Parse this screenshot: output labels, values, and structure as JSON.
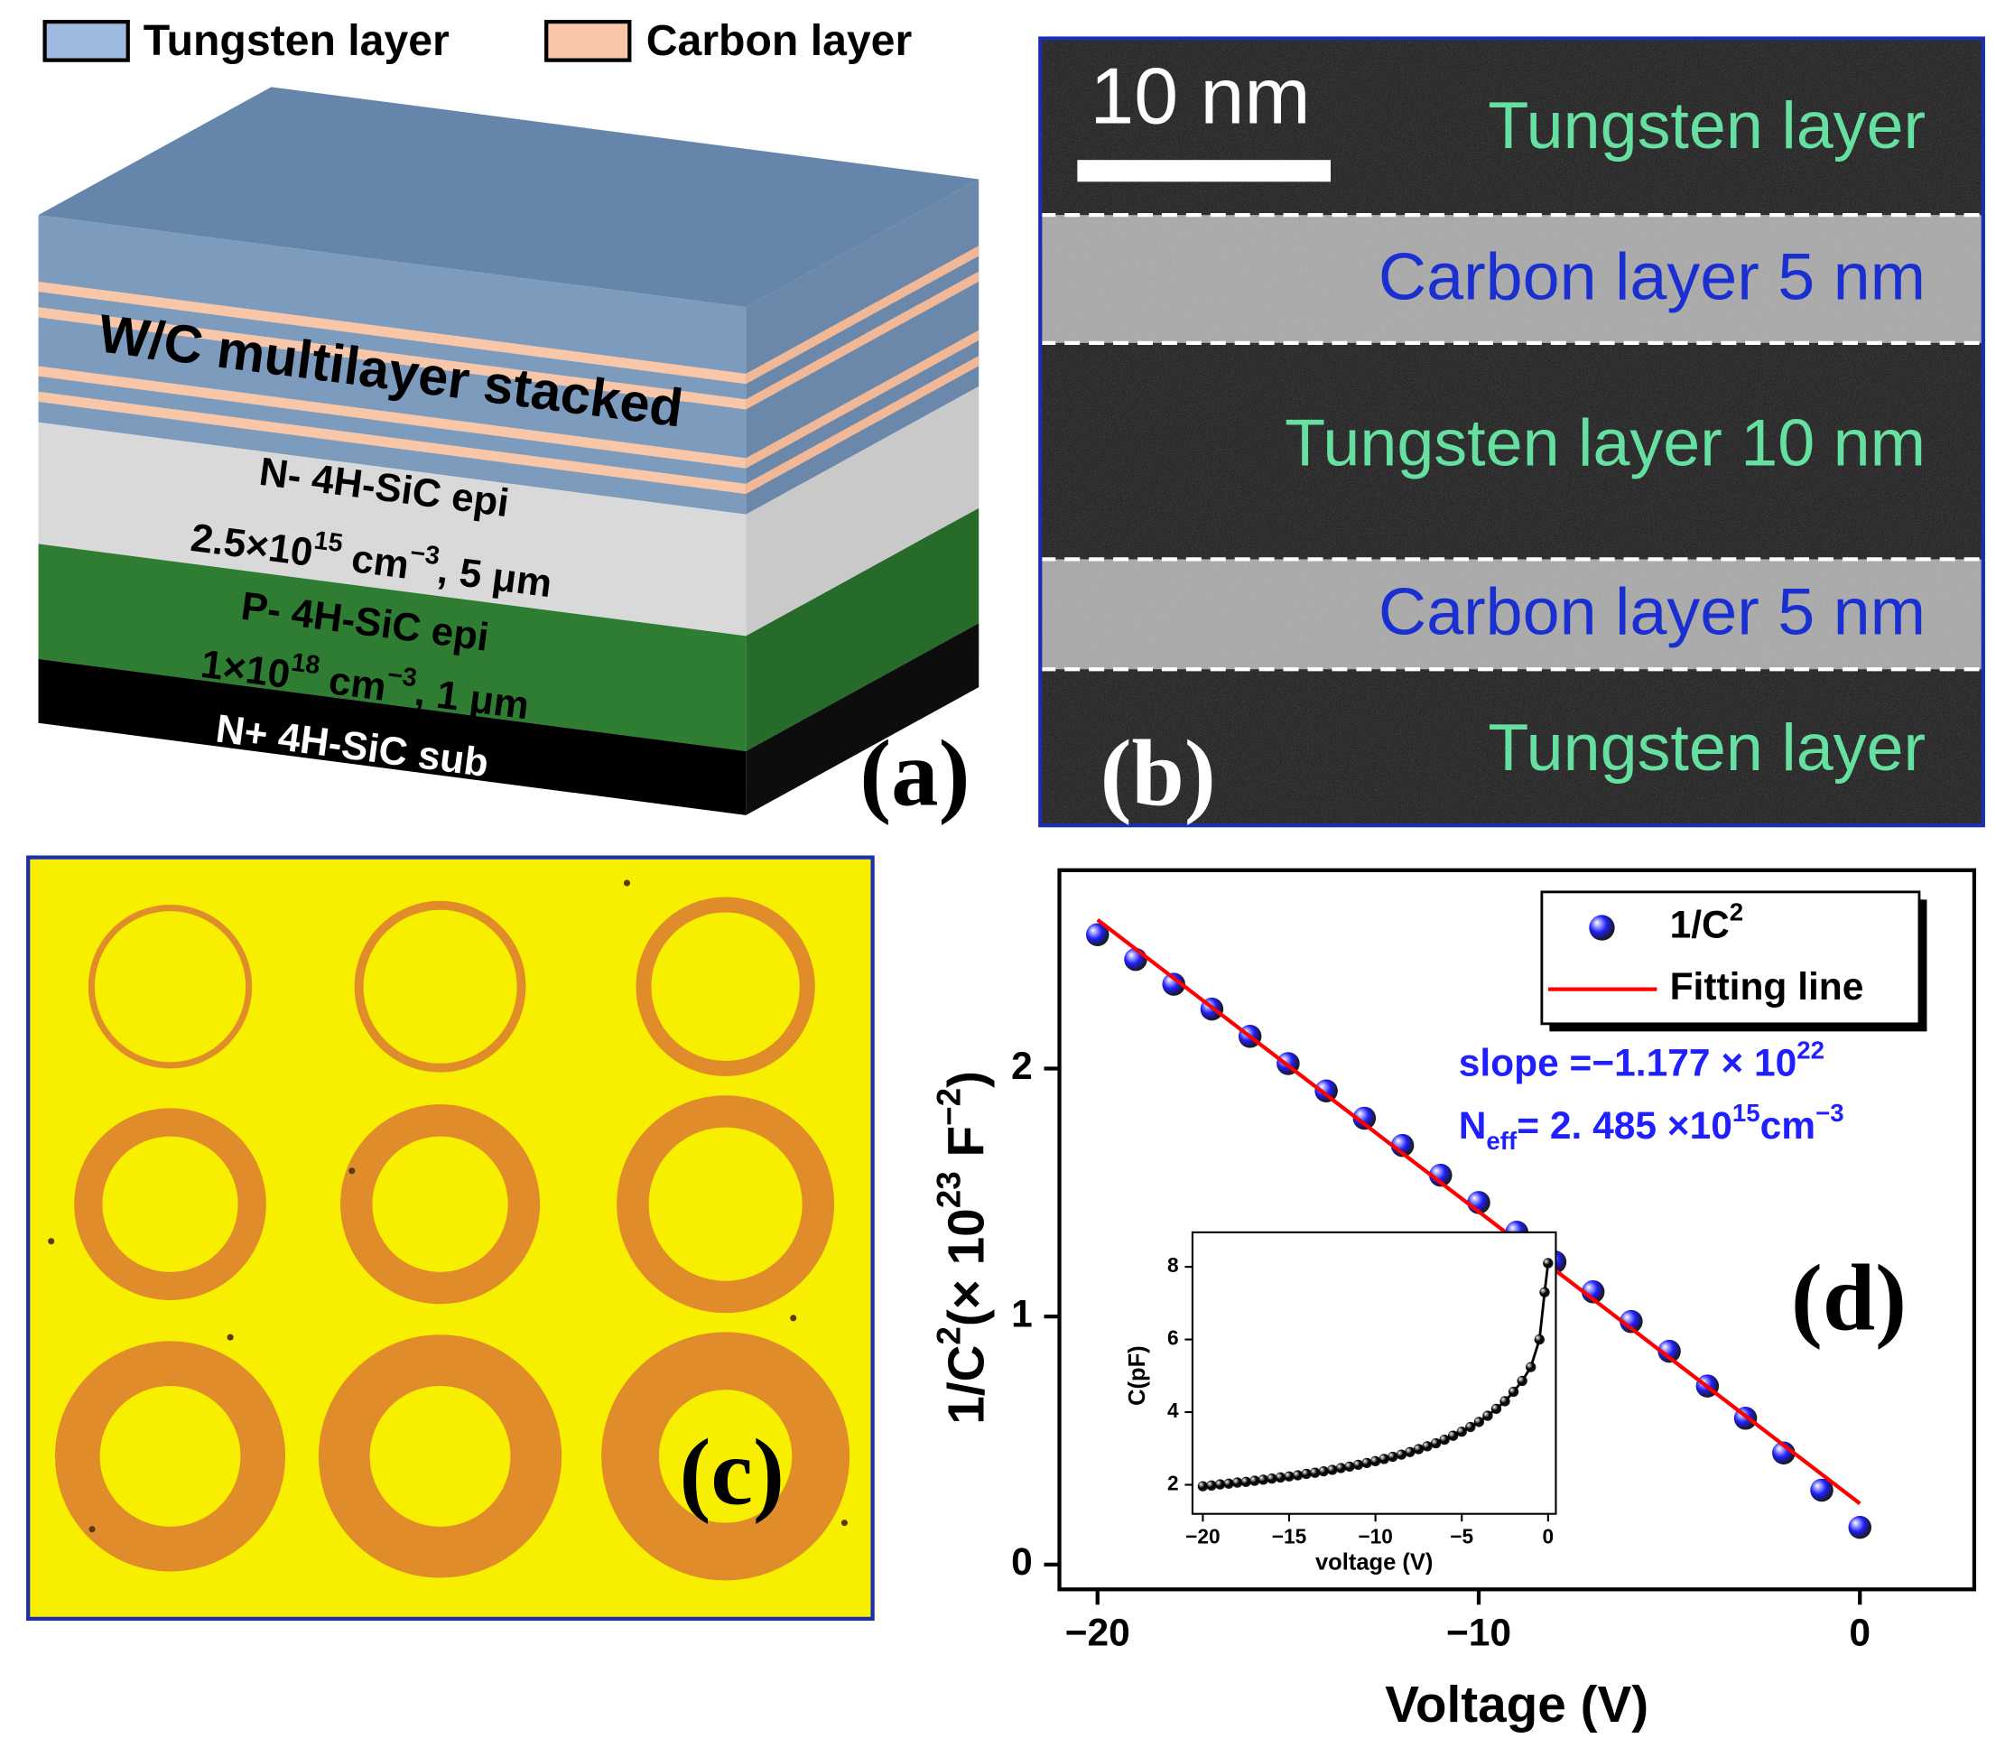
{
  "panel_labels": [
    "(a)",
    "(b)",
    "(c)",
    "(d)"
  ],
  "panel_a": {
    "legend": [
      {
        "name": "Tungsten layer",
        "color": "#9dbbe0"
      },
      {
        "name": "Carbon layer",
        "color": "#f8c6a8"
      }
    ],
    "stack_label": "W/C multilayer stacked",
    "epi_n": [
      "N- 4H-SiC epi",
      [
        {
          "text": "2.5×10"
        },
        {
          "text": "15",
          "shift": "super"
        },
        {
          "text": " cm"
        },
        {
          "text": "−3",
          "shift": "super"
        },
        {
          "text": ", 5 μm"
        }
      ]
    ],
    "epi_p": [
      "P- 4H-SiC epi",
      [
        {
          "text": "1×10"
        },
        {
          "text": "18",
          "shift": "super"
        },
        {
          "text": " cm"
        },
        {
          "text": "−3",
          "shift": "super"
        },
        {
          "text": ", 1 μm"
        }
      ]
    ],
    "substrate": "N+ 4H-SiC sub"
  },
  "panel_b": {
    "scale_bar": "10 nm",
    "layers": [
      "Tungsten layer",
      "Carbon layer 5 nm",
      "Tungsten layer 10 nm",
      "Carbon layer 5 nm",
      "Tungsten layer"
    ]
  },
  "chart_data": [
    {
      "type": "scatter",
      "xlabel": "Voltage (V)",
      "ylabel": [
        {
          "text": "1/C"
        },
        {
          "text": "2",
          "shift": "super"
        },
        {
          "text": "(× 10"
        },
        {
          "text": "23",
          "shift": "super"
        },
        {
          "text": " F"
        },
        {
          "text": "−2",
          "shift": "super"
        },
        {
          "text": ")"
        }
      ],
      "xlim": [
        -21,
        3
      ],
      "ylim": [
        -0.1,
        2.8
      ],
      "xticks": [
        {
          "value": -20,
          "label": "−20"
        },
        {
          "value": -10,
          "label": "−10"
        },
        0
      ],
      "yticks": [
        0,
        1,
        2
      ],
      "frame": true,
      "legend": "upper right",
      "annotation_color": "#1f1fff",
      "annotations": [
        [
          {
            "text": "slope =−1.177 × 10"
          },
          {
            "text": "22",
            "shift": "super"
          }
        ],
        [
          {
            "text": "N"
          },
          {
            "text": "eff",
            "shift": "sub"
          },
          {
            "text": "= 2. 485 ×10"
          },
          {
            "text": "15",
            "shift": "super"
          },
          {
            "text": "cm"
          },
          {
            "text": "−3",
            "shift": "super"
          }
        ]
      ],
      "series": [
        {
          "name": [
            {
              "text": "1/C"
            },
            {
              "text": "2",
              "shift": "super"
            }
          ],
          "type": "scatter",
          "color": "#1f1fff",
          "x": [
            -20,
            -19,
            -18,
            -17,
            -16,
            -15,
            -14,
            -13,
            -12,
            -11,
            -10,
            -9,
            -8,
            -7,
            -6,
            -5,
            -4,
            -3,
            -2,
            -1,
            0
          ],
          "values": [
            2.54,
            2.44,
            2.34,
            2.24,
            2.13,
            2.02,
            1.91,
            1.8,
            1.69,
            1.57,
            1.46,
            1.34,
            1.22,
            1.1,
            0.98,
            0.86,
            0.72,
            0.59,
            0.45,
            0.3,
            0.15
          ]
        },
        {
          "name": "Fitting line",
          "type": "line",
          "color": "#ff0000",
          "x": [
            -20,
            0
          ],
          "values": [
            2.6,
            0.246
          ]
        }
      ]
    },
    {
      "type": "line",
      "xlabel": "voltage (V)",
      "ylabel": "C(pF)",
      "xlim": [
        -20.6,
        0.45
      ],
      "ylim": [
        1.2,
        8.95
      ],
      "xticks": [
        {
          "value": -20,
          "label": "−20"
        },
        {
          "value": -15,
          "label": "−15"
        },
        {
          "value": -10,
          "label": "−10"
        },
        {
          "value": -5,
          "label": "−5"
        },
        0
      ],
      "yticks": [
        2,
        4,
        6,
        8
      ],
      "frame": true,
      "series": [
        {
          "type": "line",
          "markers": true,
          "color": "#000000",
          "x": [
            -20,
            -19.5,
            -19,
            -18.5,
            -18,
            -17.5,
            -17,
            -16.5,
            -16,
            -15.5,
            -15,
            -14.5,
            -14,
            -13.5,
            -13,
            -12.5,
            -12,
            -11.5,
            -11,
            -10.5,
            -10,
            -9.5,
            -9,
            -8.5,
            -8,
            -7.5,
            -7,
            -6.5,
            -6,
            -5.5,
            -5,
            -4.5,
            -4,
            -3.5,
            -3,
            -2.5,
            -2,
            -1.5,
            -1,
            -0.5,
            -0.2,
            0
          ],
          "values": [
            1.96,
            1.98,
            2.01,
            2.03,
            2.06,
            2.08,
            2.11,
            2.14,
            2.17,
            2.2,
            2.23,
            2.26,
            2.3,
            2.33,
            2.37,
            2.41,
            2.46,
            2.5,
            2.55,
            2.6,
            2.65,
            2.71,
            2.77,
            2.83,
            2.9,
            2.98,
            3.06,
            3.14,
            3.24,
            3.35,
            3.46,
            3.59,
            3.73,
            3.9,
            4.09,
            4.3,
            4.56,
            4.86,
            5.24,
            6.0,
            7.3,
            8.1
          ]
        }
      ]
    }
  ]
}
